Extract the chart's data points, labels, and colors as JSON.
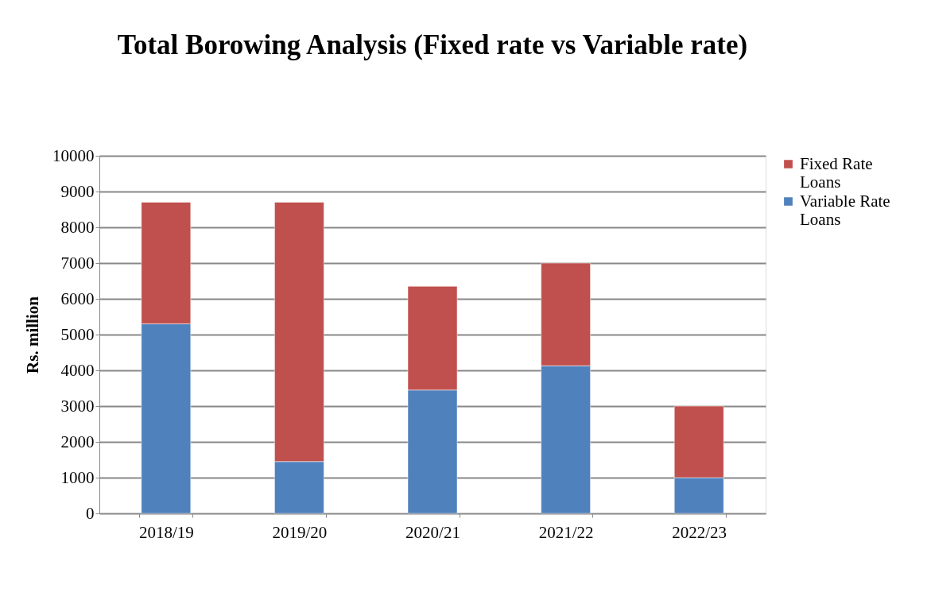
{
  "chart_data": {
    "type": "bar",
    "title": "Total Borowing Analysis (Fixed rate vs Variable rate)",
    "ylabel": "Rs. million",
    "categories": [
      "2018/19",
      "2019/20",
      "2020/21",
      "2021/22",
      "2022/23"
    ],
    "series": [
      {
        "name": "Variable Rate Loans",
        "color": "#4f81bd",
        "values": [
          5300,
          1450,
          3450,
          4130,
          1000
        ]
      },
      {
        "name": "Fixed Rate Loans",
        "color": "#c0504d",
        "values": [
          3400,
          7250,
          2900,
          2870,
          2000
        ]
      }
    ],
    "stacked": true,
    "ylim": [
      0,
      10000
    ],
    "yticks": [
      0,
      1000,
      2000,
      3000,
      4000,
      5000,
      6000,
      7000,
      8000,
      9000,
      10000
    ],
    "grid": "y",
    "legend": "right"
  }
}
